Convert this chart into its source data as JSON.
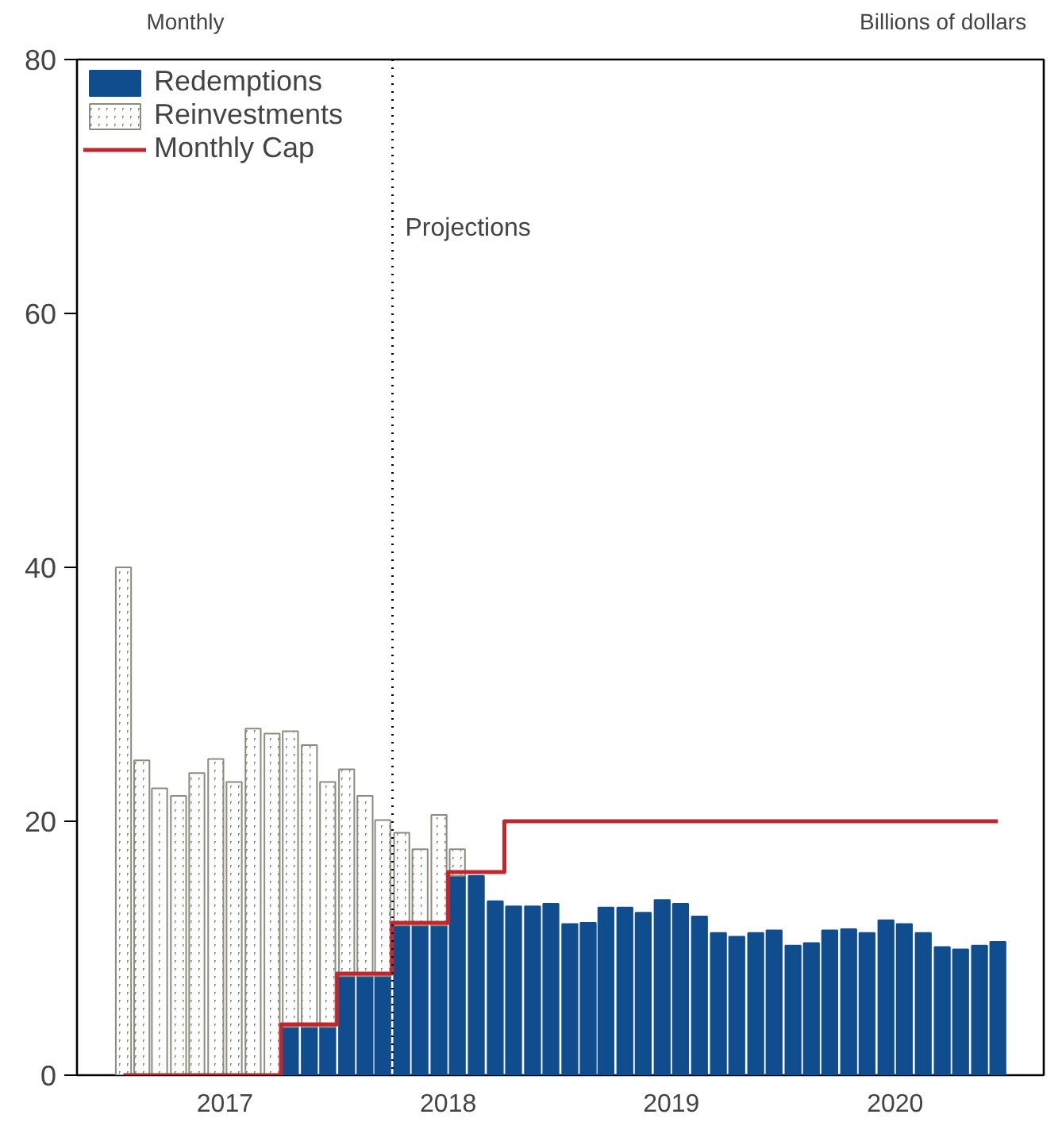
{
  "chart_data": {
    "type": "bar",
    "stacked": true,
    "ylabel": "Monthly",
    "y2label": "Billions of dollars",
    "x": [
      "2017-01-16",
      "2017-02-15",
      "2017-03-16",
      "2017-04-16",
      "2017-05-16",
      "2017-06-16",
      "2017-07-16",
      "2017-08-16",
      "2017-09-16",
      "2017-10-16",
      "2017-11-16",
      "2017-12-16",
      "2018-01-16",
      "2018-02-15",
      "2018-03-16",
      "2018-04-16",
      "2018-05-16",
      "2018-06-16",
      "2018-07-16",
      "2018-08-16",
      "2018-09-16",
      "2018-10-16",
      "2018-11-16",
      "2018-12-16",
      "2019-01-16",
      "2019-02-15",
      "2019-03-16",
      "2019-04-16",
      "2019-05-16",
      "2019-06-16",
      "2019-07-16",
      "2019-08-16",
      "2019-09-16",
      "2019-10-16",
      "2019-11-16",
      "2019-12-16",
      "2020-01-16",
      "2020-02-15",
      "2020-03-16",
      "2020-04-16",
      "2020-05-16",
      "2020-06-16",
      "2020-07-16",
      "2020-08-16",
      "2020-09-16",
      "2020-10-16",
      "2020-11-16",
      "2020-12-16"
    ],
    "series": [
      {
        "name": "Redemptions",
        "color": "#0f4d8f",
        "values": [
          null,
          null,
          null,
          null,
          null,
          null,
          null,
          null,
          null,
          3.8,
          3.8,
          3.8,
          7.8,
          7.8,
          7.8,
          11.8,
          11.8,
          11.8,
          15.7,
          15.7,
          13.7,
          13.3,
          13.3,
          13.5,
          11.9,
          12.0,
          13.2,
          13.2,
          12.8,
          13.8,
          13.5,
          12.5,
          11.2,
          10.9,
          11.2,
          11.4,
          10.2,
          10.4,
          11.4,
          11.5,
          11.2,
          12.2,
          11.9,
          11.2,
          10.1,
          9.9,
          10.2,
          10.5
        ]
      },
      {
        "name": "Reinvestments",
        "color": "#8c8c7e",
        "values": [
          40,
          24.8,
          22.6,
          22.0,
          23.8,
          24.9,
          23.1,
          27.3,
          26.9,
          23.3,
          22.2,
          19.3,
          16.3,
          14.2,
          12.3,
          7.3,
          6.0,
          8.7,
          2.1,
          null,
          null,
          null,
          null,
          null,
          null,
          null,
          null,
          null,
          null,
          null,
          null,
          null,
          null,
          null,
          null,
          null,
          null,
          null,
          null,
          null,
          null,
          null,
          null,
          null,
          null,
          null,
          null,
          null
        ]
      },
      {
        "name": "Monthly Cap",
        "type": "step",
        "color": "#c0262c",
        "values": [
          0,
          0,
          0,
          0,
          0,
          0,
          0,
          0,
          0,
          4,
          4,
          4,
          8,
          8,
          8,
          12,
          12,
          12,
          16,
          16,
          16,
          20,
          20,
          20,
          20,
          20,
          20,
          20,
          20,
          20,
          20,
          20,
          20,
          20,
          20,
          20,
          20,
          20,
          20,
          20,
          20,
          20,
          20,
          20,
          20,
          20,
          20,
          20
        ]
      }
    ],
    "xlim": [
      "2016-11-01",
      "2021-03-01"
    ],
    "xticks": [
      {
        "value": "2017-01-01",
        "label": null
      },
      {
        "value": "2017-07-01",
        "label": "2017"
      },
      {
        "value": "2018-01-01",
        "label": null
      },
      {
        "value": "2018-07-01",
        "label": "2018"
      },
      {
        "value": "2019-01-01",
        "label": null
      },
      {
        "value": "2019-07-01",
        "label": "2019"
      },
      {
        "value": "2020-01-01",
        "label": null
      },
      {
        "value": "2020-07-01",
        "label": "2020"
      },
      {
        "value": "2021-01-01",
        "label": null
      }
    ],
    "ylim": [
      0,
      80
    ],
    "yticks": [
      0,
      20,
      40,
      60,
      80
    ],
    "ref_lines": [
      {
        "axis": "x",
        "value": "2018-04-01",
        "label": "Projections",
        "line_style": "dotted",
        "color": "#000000"
      }
    ],
    "grid": false,
    "legend": "top left"
  }
}
